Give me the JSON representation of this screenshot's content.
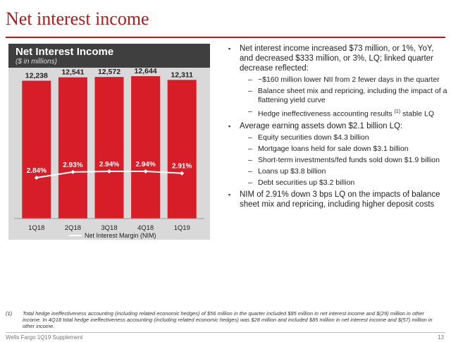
{
  "page_title": "Net interest income",
  "chart_data": {
    "type": "bar",
    "title": "Net Interest Income",
    "subtitle": "($ in millions)",
    "categories": [
      "1Q18",
      "2Q18",
      "3Q18",
      "4Q18",
      "1Q19"
    ],
    "values": [
      12238,
      12541,
      12572,
      12644,
      12311
    ],
    "value_labels": [
      "12,238",
      "12,541",
      "12,572",
      "12,644",
      "12,311"
    ],
    "line_series": {
      "name": "Net Interest Margin (NIM)",
      "values": [
        2.84,
        2.93,
        2.94,
        2.94,
        2.91
      ],
      "labels": [
        "2.84%",
        "2.93%",
        "2.94%",
        "2.94%",
        "2.91%"
      ]
    },
    "legend": "Net Interest Margin (NIM)",
    "colors": {
      "bar": "#d71e28",
      "line": "#ffffff",
      "panel": "#d9d9d9",
      "header": "#3f3f3f"
    }
  },
  "bullets": [
    {
      "text": "Net interest income increased $73 million, or 1%, YoY, and decreased $333 million, or 3%, LQ; linked quarter decrease reflected:",
      "subs": [
        {
          "text": "~$160 million lower NII from 2 fewer days in the quarter"
        },
        {
          "text": "Balance sheet mix and repricing, including the impact of a flattening yield curve"
        },
        {
          "pre": "Hedge ineffectiveness accounting results ",
          "sup": "(1)",
          "post": " stable LQ"
        }
      ]
    },
    {
      "text": "Average earning assets down $2.1 billion LQ:",
      "subs": [
        {
          "text": "Equity securities down $4.3 billion"
        },
        {
          "text": "Mortgage loans held for sale down $3.1 billion"
        },
        {
          "text": "Short-term investments/fed funds sold down $1.9 billion"
        },
        {
          "text": "Loans up $3.8 billion"
        },
        {
          "text": "Debt securities up $3.2 billion"
        }
      ]
    },
    {
      "text": "NIM of 2.91% down 3 bps LQ on the impacts of balance sheet mix and repricing, including higher deposit costs",
      "subs": []
    }
  ],
  "footnote": {
    "number": "(1)",
    "text": "Total hedge ineffectiveness accounting (including related economic hedges) of $56 million in the quarter included $85 million in net interest income and $(29) million in other income. In 4Q18 total hedge ineffectiveness accounting (including related economic hedges) was $28 million and included $85 million in net interest income and $(57) million in other income."
  },
  "footer": {
    "left": "Wells Fargo 1Q19 Supplement",
    "page": "13"
  }
}
